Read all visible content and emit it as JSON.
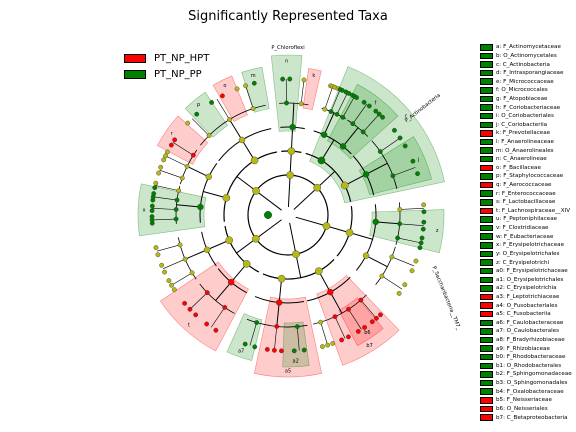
{
  "title": "Significantly Represented Taxa",
  "colors": {
    "PT_NP_HPT": "#ff0000",
    "PT_NP_PP": "#008000",
    "node": "#b8b814",
    "line": "#000000"
  },
  "legend": [
    {
      "label": "PT_NP_HPT",
      "color": "#ff0000"
    },
    {
      "label": "PT_NP_PP",
      "color": "#008000"
    }
  ],
  "chart_data": {
    "type": "cladogram",
    "title": "Significantly Represented Taxa",
    "series": [
      {
        "name": "PT_NP_HPT"
      },
      {
        "name": "PT_NP_PP"
      }
    ],
    "taxa_legend": [
      {
        "code": "a",
        "name": "F_Actinomycetaceae",
        "group": "PT_NP_PP"
      },
      {
        "code": "b",
        "name": "O_Actinomycetales",
        "group": "PT_NP_PP"
      },
      {
        "code": "c",
        "name": "C_Actinobacteria",
        "group": "PT_NP_PP"
      },
      {
        "code": "d",
        "name": "F_Intrasporangiaceae",
        "group": "PT_NP_PP"
      },
      {
        "code": "e",
        "name": "F_Micrococcaceae",
        "group": "PT_NP_PP"
      },
      {
        "code": "f",
        "name": "O_Micrococcales",
        "group": "PT_NP_PP"
      },
      {
        "code": "g",
        "name": "F_Atopobiaceae",
        "group": "PT_NP_PP"
      },
      {
        "code": "h",
        "name": "F_Coriobacteriaceae",
        "group": "PT_NP_PP"
      },
      {
        "code": "i",
        "name": "O_Coriobacteriales",
        "group": "PT_NP_PP"
      },
      {
        "code": "j",
        "name": "C_Coriobacteriia",
        "group": "PT_NP_PP"
      },
      {
        "code": "k",
        "name": "F_Prevotellaceae",
        "group": "PT_NP_HPT"
      },
      {
        "code": "l",
        "name": "F_Anaerolineaceae",
        "group": "PT_NP_PP"
      },
      {
        "code": "m",
        "name": "O_Anaerolineales",
        "group": "PT_NP_PP"
      },
      {
        "code": "n",
        "name": "C_Anaerolineae",
        "group": "PT_NP_PP"
      },
      {
        "code": "o",
        "name": "F_Bacillaceae",
        "group": "PT_NP_HPT"
      },
      {
        "code": "p",
        "name": "F_Staphylococcaceae",
        "group": "PT_NP_PP"
      },
      {
        "code": "q",
        "name": "F_Aerococcaceae",
        "group": "PT_NP_HPT"
      },
      {
        "code": "r",
        "name": "F_Enterococcaceae",
        "group": "PT_NP_PP"
      },
      {
        "code": "s",
        "name": "F_Lactobacillaceae",
        "group": "PT_NP_PP"
      },
      {
        "code": "t",
        "name": "F_Lachnospiraceae__XIV",
        "group": "PT_NP_HPT"
      },
      {
        "code": "u",
        "name": "F_Peptoniphilaceae",
        "group": "PT_NP_PP"
      },
      {
        "code": "v",
        "name": "F_Clostridiaceae",
        "group": "PT_NP_PP"
      },
      {
        "code": "w",
        "name": "F_Eubacteriaceae",
        "group": "PT_NP_PP"
      },
      {
        "code": "x",
        "name": "F_Erysipelotrichaceae",
        "group": "PT_NP_PP"
      },
      {
        "code": "y",
        "name": "O_Erysipelotrichales",
        "group": "PT_NP_PP"
      },
      {
        "code": "z",
        "name": "C_Erysipelotrichi",
        "group": "PT_NP_PP"
      },
      {
        "code": "a0",
        "name": "F_Erysipelotrichaceae",
        "group": "PT_NP_PP"
      },
      {
        "code": "a1",
        "name": "O_Erysipelotrichales",
        "group": "PT_NP_PP"
      },
      {
        "code": "a2",
        "name": "C_Erysipelotrichia",
        "group": "PT_NP_PP"
      },
      {
        "code": "a3",
        "name": "F_Leptotrichiaceae",
        "group": "PT_NP_HPT"
      },
      {
        "code": "a4",
        "name": "O_Fusobacteriales",
        "group": "PT_NP_HPT"
      },
      {
        "code": "a5",
        "name": "C_Fusobacteriia",
        "group": "PT_NP_HPT"
      },
      {
        "code": "a6",
        "name": "F_Caulobacteraceae",
        "group": "PT_NP_PP"
      },
      {
        "code": "a7",
        "name": "O_Caulobacterales",
        "group": "PT_NP_PP"
      },
      {
        "code": "a8",
        "name": "F_Bradyrhizobiaceae",
        "group": "PT_NP_PP"
      },
      {
        "code": "a9",
        "name": "F_Rhizobiaceae",
        "group": "PT_NP_PP"
      },
      {
        "code": "b0",
        "name": "F_Rhodobacteraceae",
        "group": "PT_NP_PP"
      },
      {
        "code": "b1",
        "name": "O_Rhodobacterales",
        "group": "PT_NP_PP"
      },
      {
        "code": "b2",
        "name": "F_Sphingomonadaceae",
        "group": "PT_NP_PP"
      },
      {
        "code": "b3",
        "name": "O_Sphingomonadales",
        "group": "PT_NP_PP"
      },
      {
        "code": "b4",
        "name": "F_Oxalobacteraceae",
        "group": "PT_NP_PP"
      },
      {
        "code": "b5",
        "name": "F_Neisseriaceae",
        "group": "PT_NP_HPT"
      },
      {
        "code": "b6",
        "name": "O_Neisseriales",
        "group": "PT_NP_HPT"
      },
      {
        "code": "b7",
        "name": "C_Betaproteobacteria",
        "group": "PT_NP_HPT"
      }
    ],
    "clade_labels": [
      "P_Chloroflexi",
      "P_Actinobacteria",
      "P_Saccharibacteria__TM7_"
    ]
  }
}
